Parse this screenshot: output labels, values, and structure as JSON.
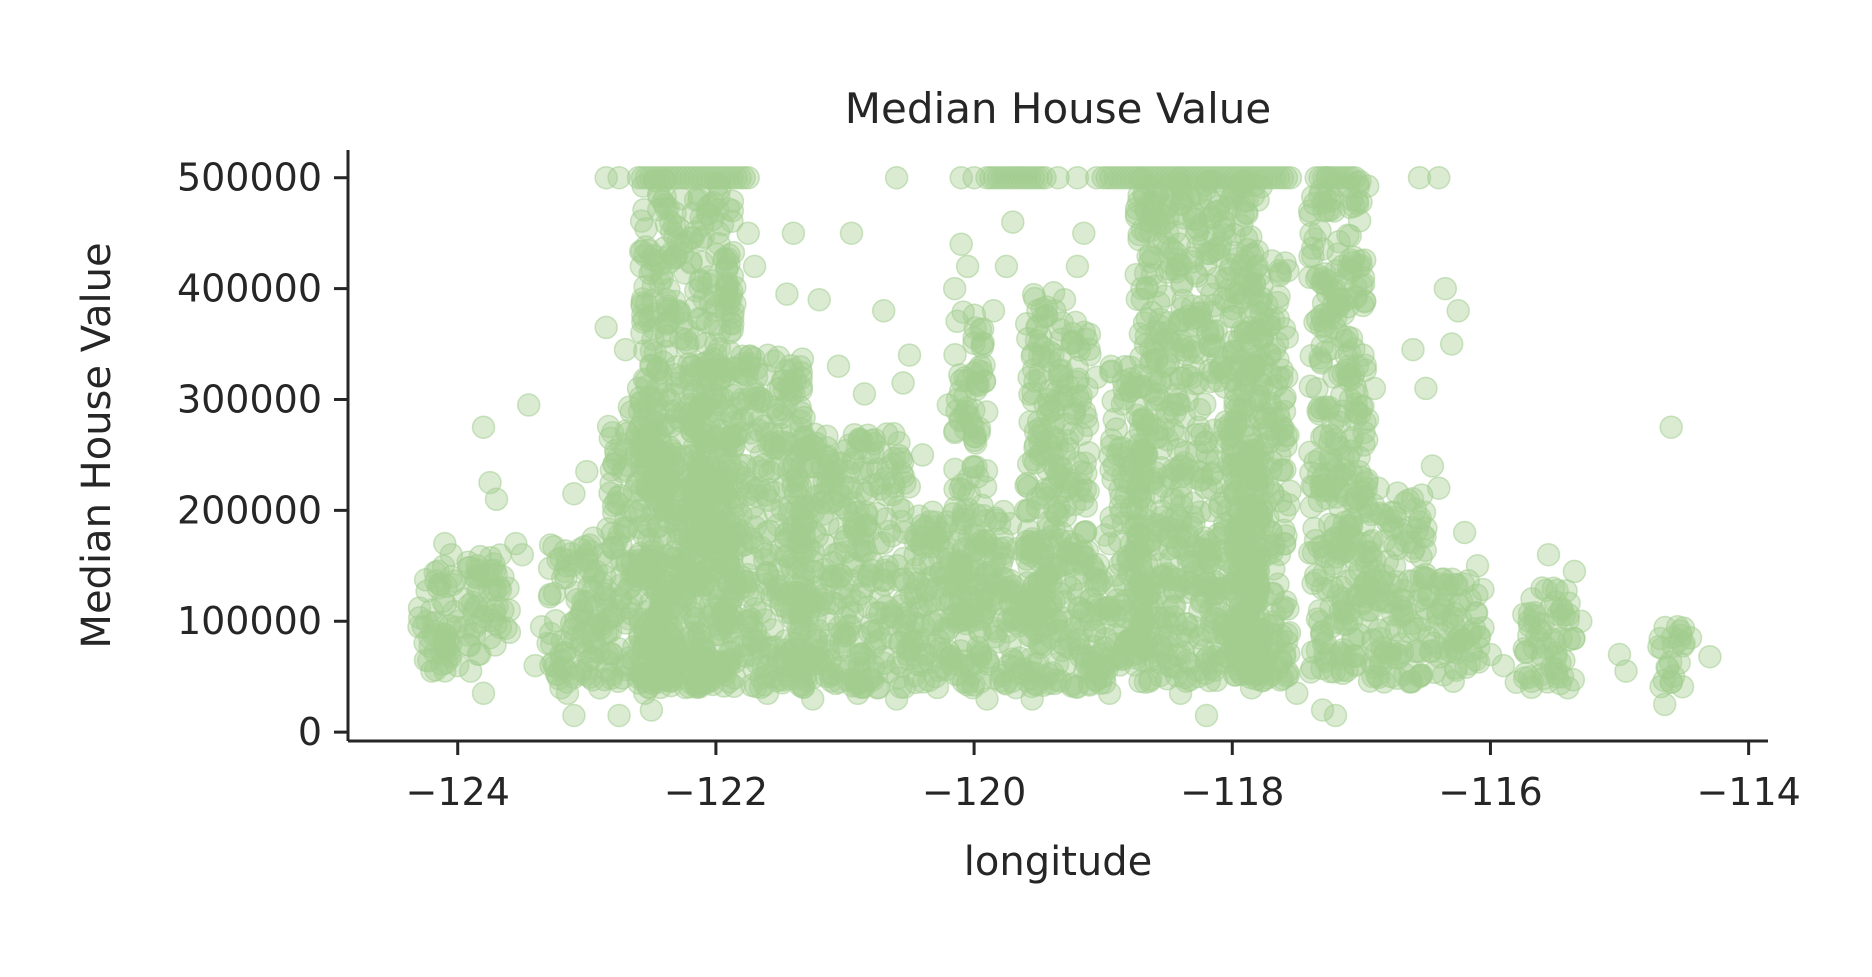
{
  "chart_data": {
    "type": "scatter",
    "title": "Median House Value",
    "xlabel": "longitude",
    "ylabel": "Median House Value",
    "xlim": [
      -124.85,
      -113.85
    ],
    "ylim": [
      -8000,
      525000
    ],
    "xticks": [
      -124,
      -122,
      -120,
      -118,
      -116,
      -114
    ],
    "xtick_labels": [
      "−124",
      "−122",
      "−120",
      "−118",
      "−116",
      "−114"
    ],
    "yticks": [
      0,
      100000,
      200000,
      300000,
      400000,
      500000
    ],
    "ytick_labels": [
      "0",
      "100000",
      "200000",
      "300000",
      "400000",
      "500000"
    ],
    "grid": false,
    "legend": "none",
    "color": "#a3cd8f",
    "alpha": 0.4,
    "series": [
      {
        "points": [
          [
            -124.3,
            95000
          ],
          [
            -124.2,
            110000
          ],
          [
            -124.15,
            130000
          ],
          [
            -124.1,
            85000
          ],
          [
            -124.05,
            140000
          ],
          [
            -124.0,
            60000
          ],
          [
            -124.2,
            55000
          ],
          [
            -124.1,
            75000
          ],
          [
            -123.95,
            120000
          ],
          [
            -124.0,
            100000
          ],
          [
            -123.85,
            150000
          ],
          [
            -123.8,
            35000
          ],
          [
            -123.8,
            275000
          ],
          [
            -123.75,
            225000
          ],
          [
            -123.7,
            210000
          ],
          [
            -123.65,
            110000
          ],
          [
            -123.6,
            90000
          ],
          [
            -123.55,
            170000
          ],
          [
            -123.5,
            160000
          ],
          [
            -123.45,
            295000
          ],
          [
            -123.4,
            60000
          ],
          [
            -123.35,
            95000
          ],
          [
            -123.25,
            125000
          ],
          [
            -123.2,
            70000
          ],
          [
            -123.15,
            35000
          ],
          [
            -123.1,
            15000
          ],
          [
            -123.05,
            105000
          ],
          [
            -123.0,
            145000
          ],
          [
            -122.95,
            80000
          ],
          [
            -122.9,
            40000
          ],
          [
            -123.1,
            215000
          ],
          [
            -123.0,
            235000
          ],
          [
            -122.85,
            365000
          ],
          [
            -122.8,
            270000
          ],
          [
            -122.75,
            15000
          ],
          [
            -122.7,
            345000
          ],
          [
            -122.6,
            310000
          ],
          [
            -122.55,
            430000
          ],
          [
            -122.55,
            35000
          ],
          [
            -122.5,
            20000
          ],
          [
            -122.45,
            300000
          ],
          [
            -122.4,
            200000
          ],
          [
            -122.35,
            460000
          ],
          [
            -122.3,
            380000
          ],
          [
            -122.25,
            150000
          ],
          [
            -122.2,
            90000
          ],
          [
            -122.1,
            240000
          ],
          [
            -122.0,
            350000
          ],
          [
            -121.9,
            60000
          ],
          [
            -121.85,
            180000
          ],
          [
            -121.8,
            300000
          ],
          [
            -121.75,
            450000
          ],
          [
            -121.7,
            420000
          ],
          [
            -121.6,
            35000
          ],
          [
            -121.55,
            260000
          ],
          [
            -121.5,
            310000
          ],
          [
            -121.45,
            395000
          ],
          [
            -121.4,
            450000
          ],
          [
            -121.3,
            190000
          ],
          [
            -121.25,
            30000
          ],
          [
            -121.2,
            390000
          ],
          [
            -121.1,
            140000
          ],
          [
            -121.05,
            330000
          ],
          [
            -120.95,
            450000
          ],
          [
            -120.9,
            35000
          ],
          [
            -120.85,
            305000
          ],
          [
            -120.75,
            40000
          ],
          [
            -120.7,
            380000
          ],
          [
            -120.6,
            30000
          ],
          [
            -120.55,
            315000
          ],
          [
            -120.5,
            340000
          ],
          [
            -120.4,
            250000
          ],
          [
            -120.3,
            50000
          ],
          [
            -120.25,
            180000
          ],
          [
            -120.2,
            295000
          ],
          [
            -120.15,
            400000
          ],
          [
            -120.1,
            440000
          ],
          [
            -120.05,
            420000
          ],
          [
            -119.95,
            330000
          ],
          [
            -119.9,
            30000
          ],
          [
            -119.85,
            380000
          ],
          [
            -119.75,
            420000
          ],
          [
            -119.7,
            460000
          ],
          [
            -119.6,
            200000
          ],
          [
            -119.55,
            30000
          ],
          [
            -119.5,
            280000
          ],
          [
            -119.45,
            250000
          ],
          [
            -119.3,
            390000
          ],
          [
            -119.25,
            100000
          ],
          [
            -119.2,
            420000
          ],
          [
            -119.15,
            450000
          ],
          [
            -119.05,
            320000
          ],
          [
            -119.0,
            60000
          ],
          [
            -118.95,
            35000
          ],
          [
            -118.9,
            110000
          ],
          [
            -118.8,
            155000
          ],
          [
            -118.75,
            80000
          ],
          [
            -118.7,
            400000
          ],
          [
            -118.6,
            300000
          ],
          [
            -118.5,
            450000
          ],
          [
            -118.45,
            210000
          ],
          [
            -118.4,
            35000
          ],
          [
            -118.35,
            90000
          ],
          [
            -118.3,
            330000
          ],
          [
            -118.2,
            15000
          ],
          [
            -118.1,
            430000
          ],
          [
            -118.0,
            250000
          ],
          [
            -117.95,
            100000
          ],
          [
            -117.9,
            360000
          ],
          [
            -117.85,
            40000
          ],
          [
            -117.8,
            480000
          ],
          [
            -117.7,
            180000
          ],
          [
            -117.6,
            300000
          ],
          [
            -117.5,
            35000
          ],
          [
            -117.4,
            470000
          ],
          [
            -117.3,
            20000
          ],
          [
            -117.2,
            15000
          ],
          [
            -117.15,
            420000
          ],
          [
            -117.1,
            330000
          ],
          [
            -117.05,
            60000
          ],
          [
            -117.0,
            230000
          ],
          [
            -116.9,
            310000
          ],
          [
            -116.8,
            190000
          ],
          [
            -116.7,
            120000
          ],
          [
            -116.6,
            345000
          ],
          [
            -116.55,
            50000
          ],
          [
            -116.5,
            310000
          ],
          [
            -116.45,
            240000
          ],
          [
            -116.4,
            220000
          ],
          [
            -116.35,
            400000
          ],
          [
            -116.3,
            350000
          ],
          [
            -116.25,
            380000
          ],
          [
            -116.2,
            180000
          ],
          [
            -116.15,
            90000
          ],
          [
            -116.1,
            150000
          ],
          [
            -116.0,
            70000
          ],
          [
            -115.9,
            60000
          ],
          [
            -115.8,
            45000
          ],
          [
            -115.7,
            100000
          ],
          [
            -115.6,
            130000
          ],
          [
            -115.55,
            160000
          ],
          [
            -115.5,
            80000
          ],
          [
            -115.45,
            110000
          ],
          [
            -115.4,
            40000
          ],
          [
            -115.35,
            145000
          ],
          [
            -115.3,
            100000
          ],
          [
            -115.0,
            70000
          ],
          [
            -114.95,
            55000
          ],
          [
            -114.65,
            25000
          ],
          [
            -114.6,
            275000
          ],
          [
            -114.55,
            95000
          ],
          [
            -114.5,
            80000
          ],
          [
            -114.45,
            85000
          ],
          [
            -114.3,
            68000
          ],
          [
            -114.6,
            45000
          ],
          [
            -116.55,
            500000
          ],
          [
            -116.4,
            500000
          ],
          [
            -120.6,
            500000
          ],
          [
            -120.0,
            500000
          ],
          [
            -120.1,
            500000
          ],
          [
            -119.35,
            500000
          ],
          [
            -119.2,
            500000
          ],
          [
            -119.05,
            500000
          ],
          [
            -122.75,
            500000
          ],
          [
            -122.85,
            500000
          ],
          [
            -124.05,
            160000
          ],
          [
            -124.1,
            170000
          ],
          [
            -124.25,
            65000
          ],
          [
            -123.9,
            55000
          ],
          [
            -123.65,
            140000
          ],
          [
            -123.3,
            80000
          ],
          [
            -123.2,
            40000
          ],
          [
            -123.15,
            155000
          ],
          [
            -123.05,
            165000
          ],
          [
            -122.95,
            175000
          ]
        ]
      }
    ],
    "dense_regions": [
      {
        "x": [
          -124.3,
          -124.0
        ],
        "y": [
          55000,
          150000
        ]
      },
      {
        "x": [
          -123.95,
          -123.6
        ],
        "y": [
          70000,
          160000
        ]
      },
      {
        "x": [
          -123.3,
          -122.85
        ],
        "y": [
          45000,
          170000
        ]
      },
      {
        "x": [
          -122.85,
          -122.3
        ],
        "y": [
          45000,
          300000
        ]
      },
      {
        "x": [
          -122.6,
          -121.85
        ],
        "y": [
          40000,
          500000
        ]
      },
      {
        "x": [
          -122.2,
          -121.3
        ],
        "y": [
          40000,
          340000
        ]
      },
      {
        "x": [
          -121.4,
          -120.5
        ],
        "y": [
          40000,
          270000
        ]
      },
      {
        "x": [
          -120.5,
          -119.7
        ],
        "y": [
          40000,
          200000
        ]
      },
      {
        "x": [
          -120.15,
          -119.9
        ],
        "y": [
          100000,
          380000
        ]
      },
      {
        "x": [
          -119.7,
          -118.95
        ],
        "y": [
          40000,
          180000
        ]
      },
      {
        "x": [
          -119.6,
          -119.35
        ],
        "y": [
          100000,
          400000
        ]
      },
      {
        "x": [
          -119.35,
          -119.1
        ],
        "y": [
          150000,
          370000
        ]
      },
      {
        "x": [
          -118.95,
          -118.65
        ],
        "y": [
          60000,
          330000
        ]
      },
      {
        "x": [
          -118.75,
          -117.75
        ],
        "y": [
          45000,
          500000
        ]
      },
      {
        "x": [
          -118.0,
          -117.55
        ],
        "y": [
          45000,
          430000
        ]
      },
      {
        "x": [
          -117.4,
          -116.95
        ],
        "y": [
          50000,
          500000
        ]
      },
      {
        "x": [
          -116.95,
          -116.5
        ],
        "y": [
          45000,
          220000
        ]
      },
      {
        "x": [
          -116.5,
          -116.05
        ],
        "y": [
          45000,
          140000
        ]
      },
      {
        "x": [
          -115.75,
          -115.35
        ],
        "y": [
          40000,
          130000
        ]
      },
      {
        "x": [
          -114.7,
          -114.5
        ],
        "y": [
          40000,
          95000
        ]
      }
    ],
    "capped_segments": [
      {
        "x": [
          -122.6,
          -121.75
        ],
        "y": 500000
      },
      {
        "x": [
          -119.9,
          -119.45
        ],
        "y": 500000
      },
      {
        "x": [
          -119.0,
          -117.55
        ],
        "y": 500000
      },
      {
        "x": [
          -117.35,
          -117.05
        ],
        "y": 500000
      }
    ]
  }
}
